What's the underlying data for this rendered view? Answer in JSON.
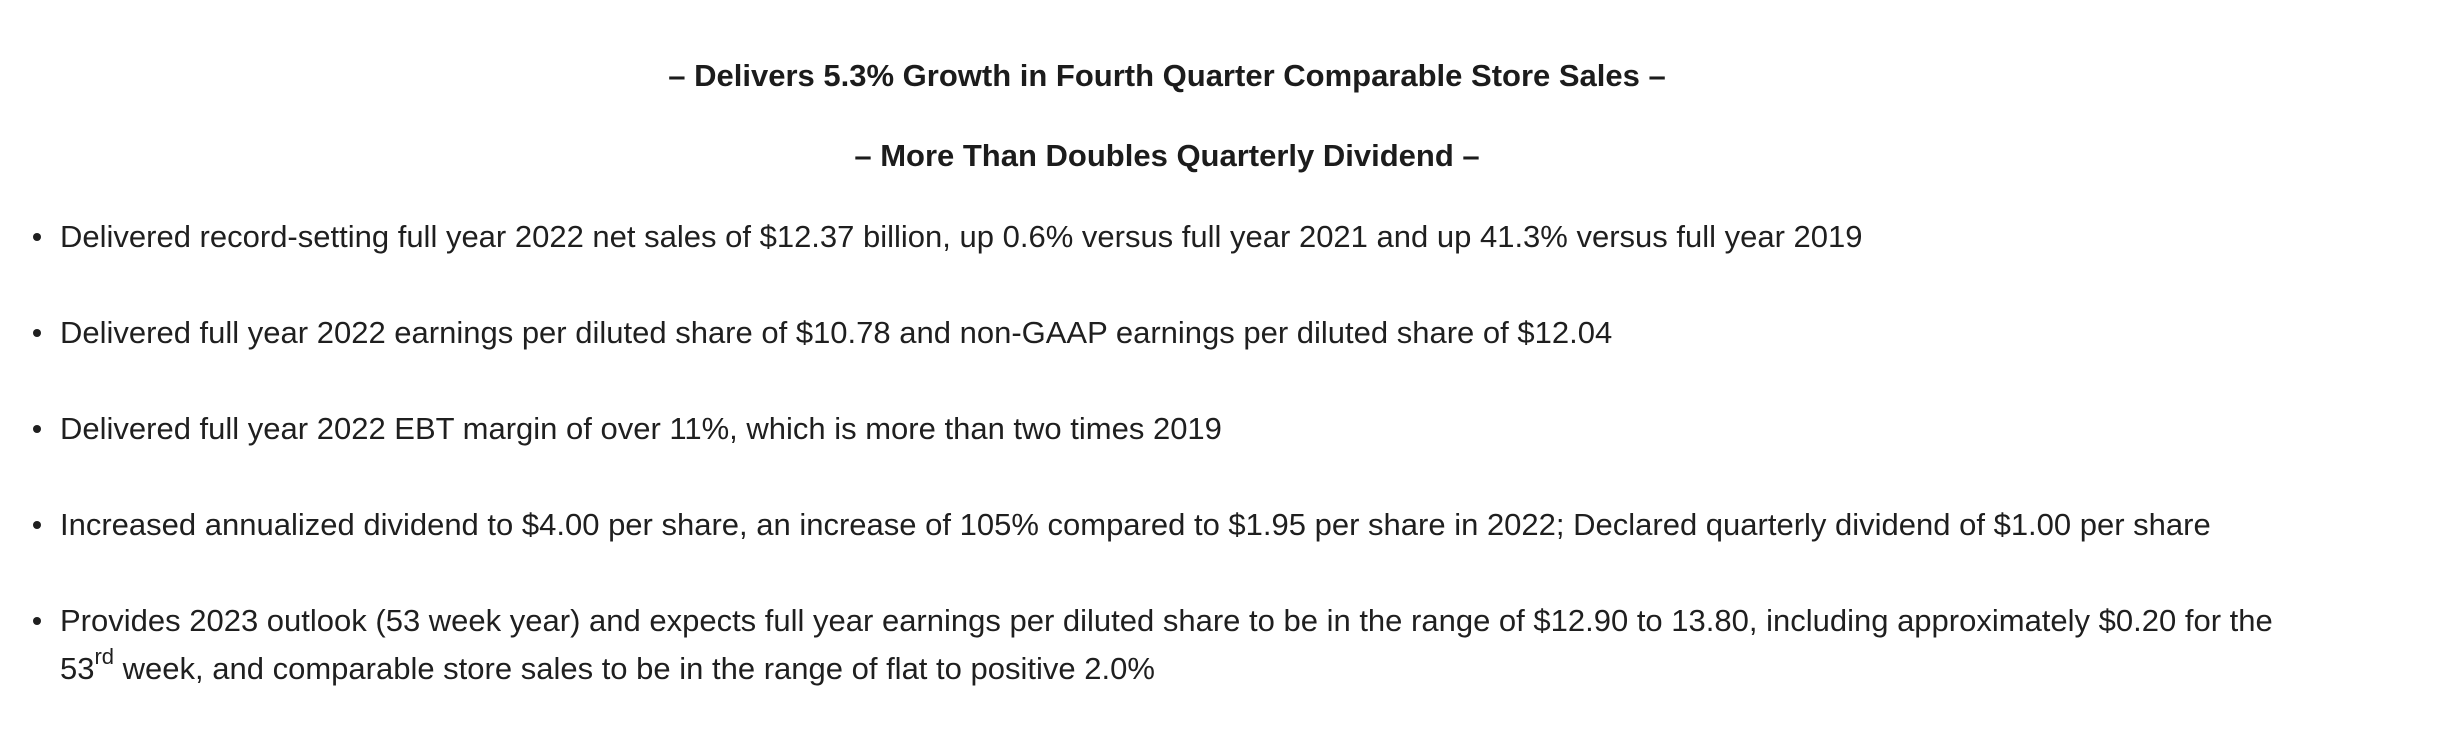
{
  "headlines": [
    "– Delivers 5.3% Growth in Fourth Quarter Comparable Store Sales –",
    "– More Than Doubles Quarterly Dividend –"
  ],
  "bullets": [
    "Delivered record-setting full year 2022 net sales of $12.37 billion, up 0.6% versus full year 2021 and up 41.3% versus full year 2019",
    "Delivered full year 2022 earnings per diluted share of $10.78 and non-GAAP earnings per diluted share of $12.04",
    "Delivered full year 2022 EBT margin of over 11%, which is more than two times 2019",
    "Increased annualized dividend to $4.00 per share, an increase of 105% compared to $1.95 per share in 2022; Declared quarterly dividend of $1.00 per share"
  ],
  "last_bullet": {
    "before_sup": "Provides 2023 outlook (53 week year) and expects full year earnings per diluted share to be in the range of $12.90 to 13.80, including approximately $0.20 for the 53",
    "sup": "rd",
    "after_sup": " week, and comparable store sales to be in the range of flat to positive 2.0%"
  }
}
